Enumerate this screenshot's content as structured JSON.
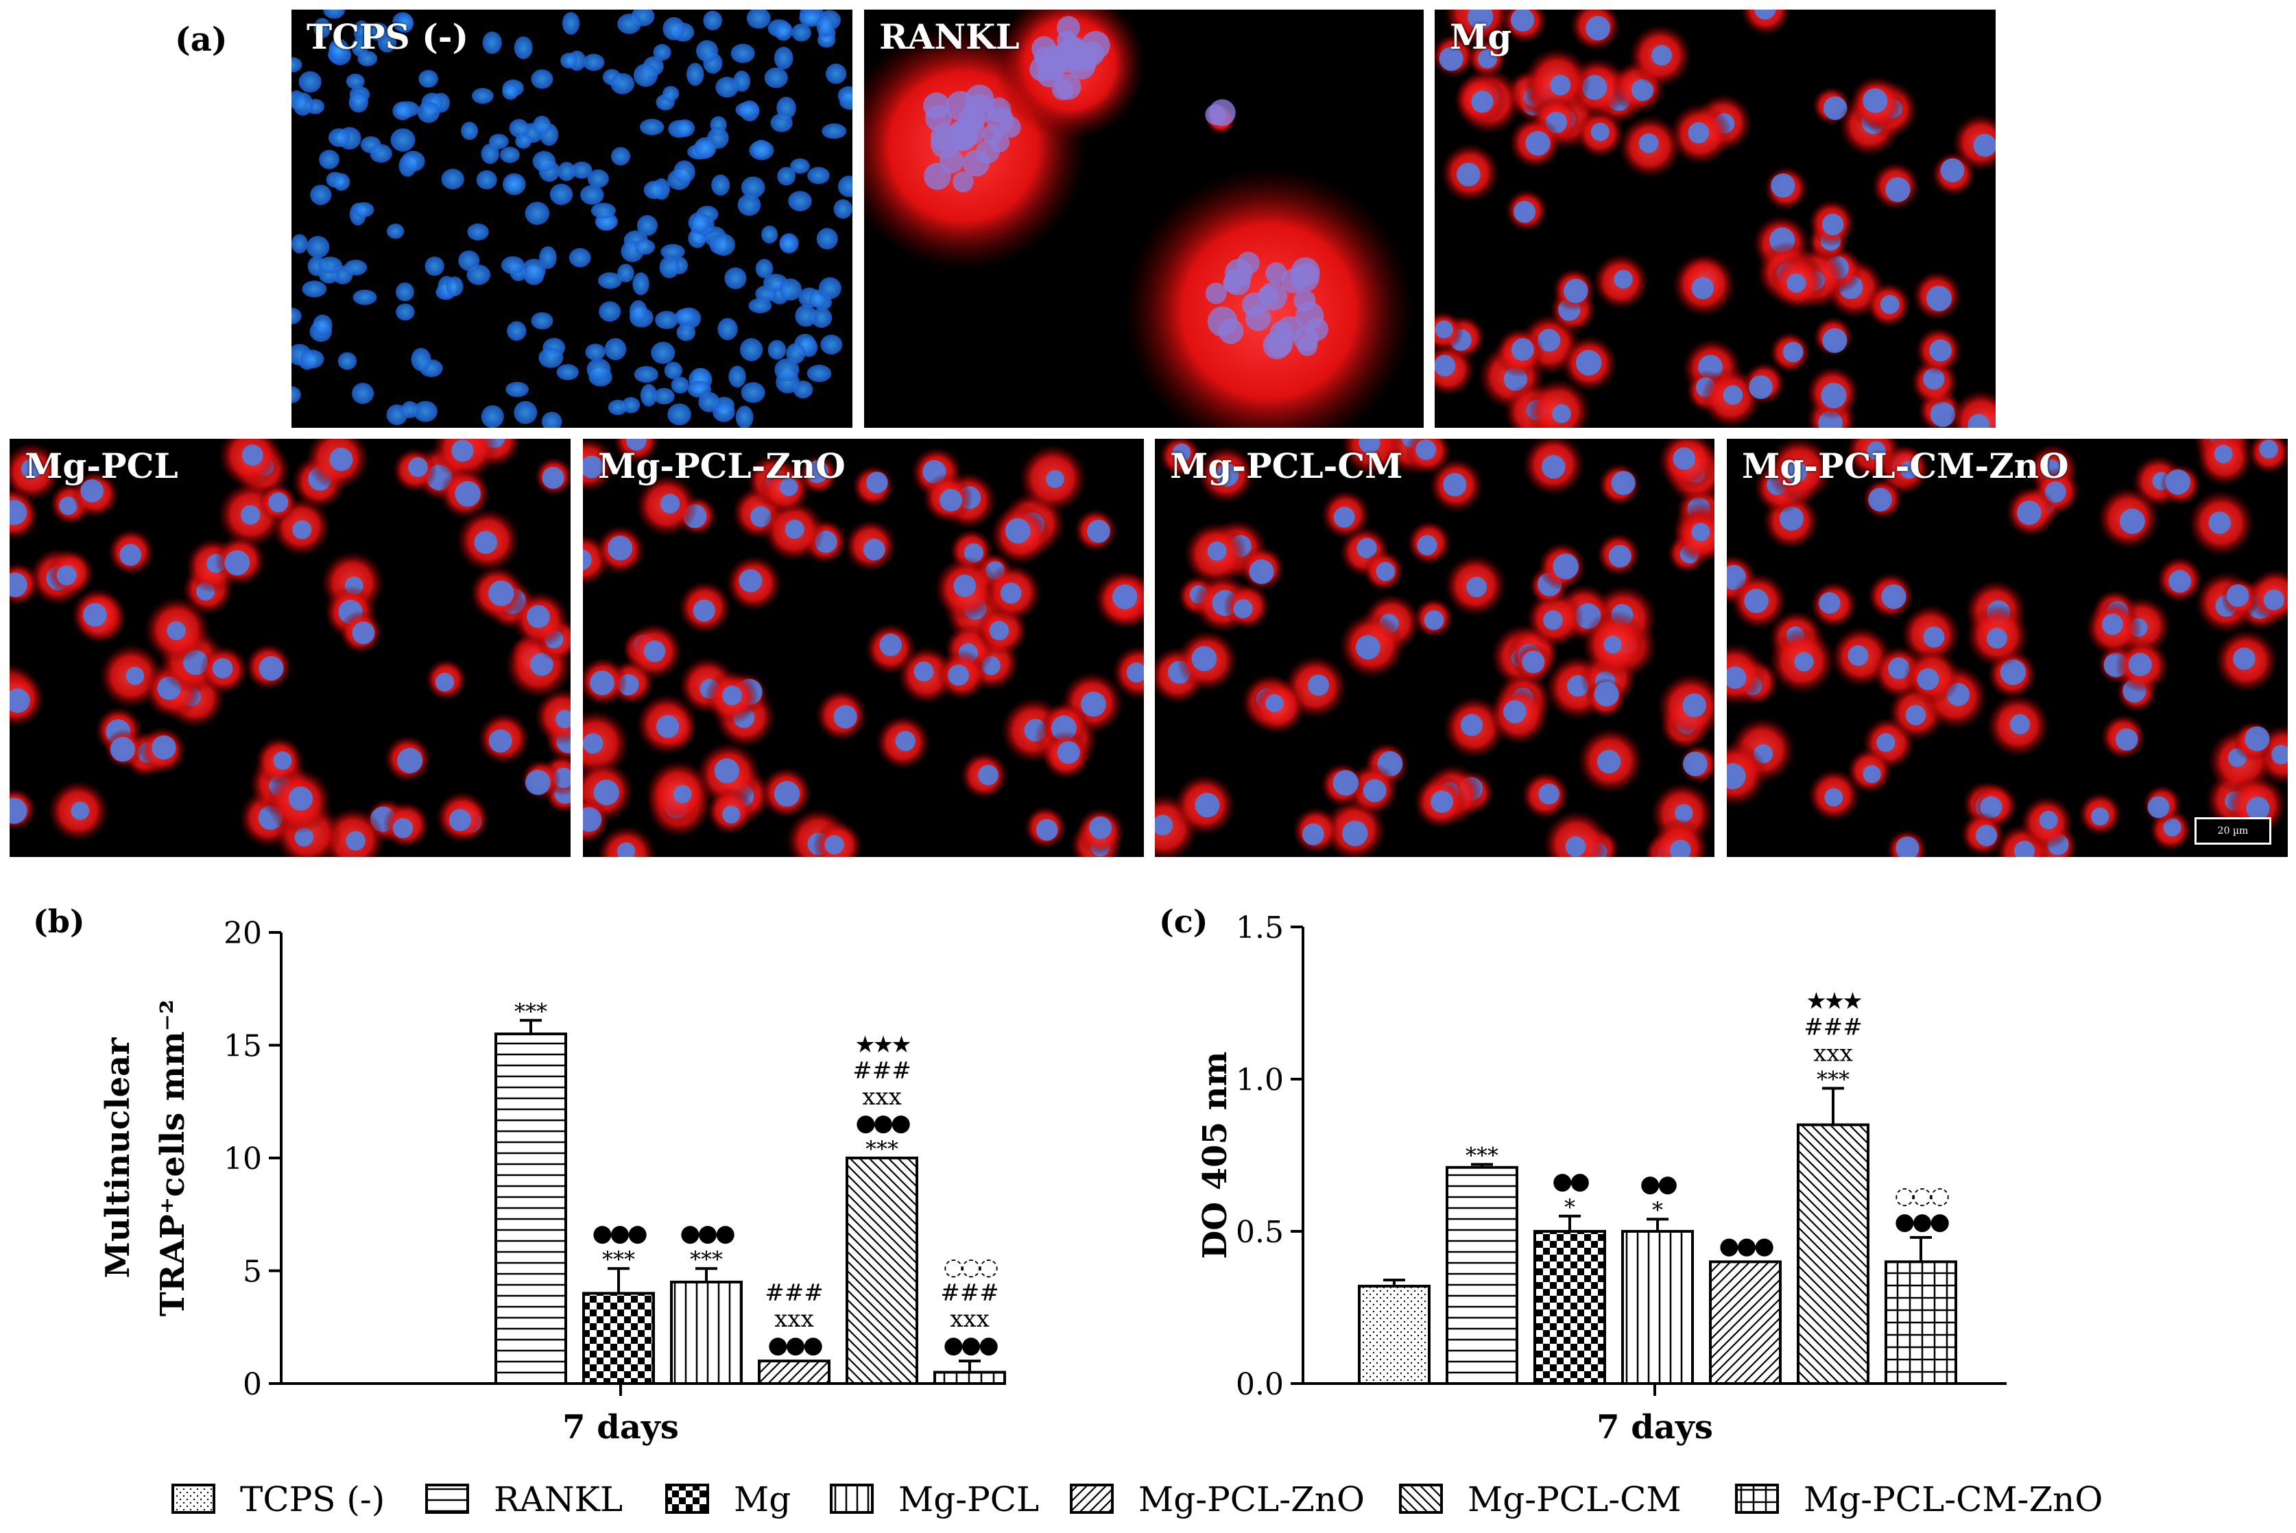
{
  "panel_a": {
    "letter": "(a)",
    "images": [
      {
        "label": "TCPS (-)",
        "stain": "blue"
      },
      {
        "label": "RANKL",
        "stain": "giant"
      },
      {
        "label": "Mg",
        "stain": "red"
      },
      {
        "label": "Mg-PCL",
        "stain": "red"
      },
      {
        "label": "Mg-PCL-ZnO",
        "stain": "red"
      },
      {
        "label": "Mg-PCL-CM",
        "stain": "red"
      },
      {
        "label": "Mg-PCL-CM-ZnO",
        "stain": "red"
      }
    ],
    "scale_bar": "20 µm"
  },
  "chart_data": [
    {
      "panel": "(b)",
      "type": "bar",
      "ylabel_line1": "Multinuclear",
      "ylabel_line2": "TRAP⁺cells mm⁻²",
      "xlabel": "7 days",
      "ylim": [
        0,
        20
      ],
      "yticks": [
        "0",
        "5",
        "10",
        "15",
        "20"
      ],
      "categories": [
        "TCPS (-)",
        "RANKL",
        "Mg",
        "Mg-PCL",
        "Mg-PCL-ZnO",
        "Mg-PCL-CM",
        "Mg-PCL-CM-ZnO"
      ],
      "values": [
        0,
        15.5,
        4.0,
        4.5,
        1.0,
        10.0,
        0.5
      ],
      "errors": [
        0,
        0.6,
        1.1,
        0.6,
        0.0,
        0.0,
        0.5
      ],
      "annotations": [
        [],
        [
          "***"
        ],
        [
          "***",
          "●●●"
        ],
        [
          "***",
          "●●●"
        ],
        [
          "●●●",
          "xxx",
          "###"
        ],
        [
          "***",
          "●●●",
          "xxx",
          "###",
          "★★★"
        ],
        [
          "●●●",
          "xxx",
          "###",
          "◌◌◌"
        ]
      ]
    },
    {
      "panel": "(c)",
      "type": "bar",
      "ylabel": "DO 405 nm",
      "xlabel": "7 days",
      "ylim": [
        0,
        1.5
      ],
      "yticks": [
        "0.0",
        "0.5",
        "1.0",
        "1.5"
      ],
      "categories": [
        "TCPS (-)",
        "RANKL",
        "Mg",
        "Mg-PCL",
        "Mg-PCL-ZnO",
        "Mg-PCL-CM",
        "Mg-PCL-CM-ZnO"
      ],
      "values": [
        0.32,
        0.71,
        0.5,
        0.5,
        0.4,
        0.85,
        0.4
      ],
      "errors": [
        0.02,
        0.01,
        0.05,
        0.04,
        0.0,
        0.12,
        0.08
      ],
      "annotations": [
        [],
        [
          "***"
        ],
        [
          "*",
          "●●"
        ],
        [
          "*",
          "●●"
        ],
        [
          "●●●"
        ],
        [
          "***",
          "xxx",
          "###",
          "★★★"
        ],
        [
          "●●●",
          "◌◌◌"
        ]
      ]
    }
  ],
  "legend": [
    {
      "label": "TCPS (-)",
      "pattern": "dots"
    },
    {
      "label": "RANKL",
      "pattern": "hlines"
    },
    {
      "label": "Mg",
      "pattern": "checker"
    },
    {
      "label": "Mg-PCL",
      "pattern": "vlines"
    },
    {
      "label": "Mg-PCL-ZnO",
      "pattern": "diagfwd"
    },
    {
      "label": "Mg-PCL-CM",
      "pattern": "diagback"
    },
    {
      "label": "Mg-PCL-CM-ZnO",
      "pattern": "grid"
    }
  ]
}
